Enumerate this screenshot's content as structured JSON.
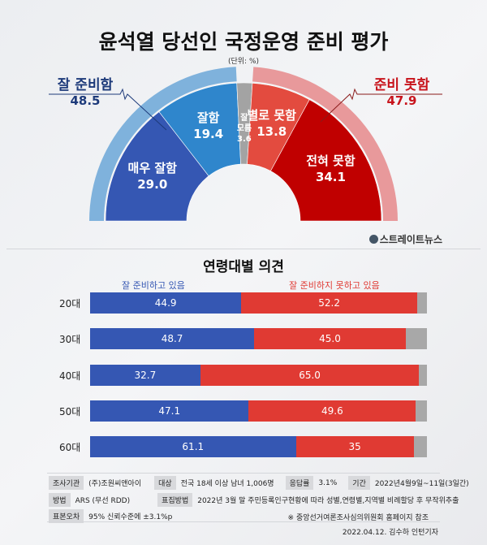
{
  "chart_data": [
    {
      "type": "pie",
      "variant": "semi-donut",
      "title": "윤석열 당선인 국정운영 준비 평가",
      "unit_note": "(단위: %)",
      "slices": [
        {
          "label": "매우 잘함",
          "value": 29.0,
          "color": "#3557b3"
        },
        {
          "label": "잘함",
          "value": 19.4,
          "color": "#2f86cc"
        },
        {
          "label": "잘 모름",
          "value": 3.6,
          "color": "#a3a3a3"
        },
        {
          "label": "별로 못함",
          "value": 13.8,
          "color": "#e34b3f"
        },
        {
          "label": "전혀 못함",
          "value": 34.1,
          "color": "#c00000"
        }
      ],
      "groups": [
        {
          "label": "잘 준비함",
          "value": "48.5",
          "color": "#7fb2dc",
          "text_color": "#1d3a7a"
        },
        {
          "label": "준비 못함",
          "value": "47.9",
          "color": "#e8999b",
          "text_color": "#c8141c"
        }
      ]
    },
    {
      "type": "bar",
      "orientation": "horizontal",
      "stacked": true,
      "title": "연령대별 의견",
      "categories": [
        "20대",
        "30대",
        "40대",
        "50대",
        "60대"
      ],
      "series": [
        {
          "name": "잘 준비하고 있음",
          "values": [
            "44.9",
            "48.7",
            "32.7",
            "47.1",
            "61.1"
          ],
          "color": "#3557b3"
        },
        {
          "name": "잘 준비하지 못하고 있음",
          "values": [
            "52.2",
            "45.0",
            "65.0",
            "49.6",
            "35"
          ],
          "color": "#e03a33"
        }
      ],
      "remainder_color": "#a8a8a8",
      "xlim": [
        0,
        100
      ]
    }
  ],
  "logo": "스트레이트뉴스",
  "info": {
    "org_label": "조사기관",
    "org": "(주)조원씨앤아이",
    "target_label": "대상",
    "target": "전국 18세 이상 남녀 1,006명",
    "rate_label": "응답률",
    "rate": "3.1%",
    "period_label": "기간",
    "period": "2022년4월9일~11일(3일간)",
    "method_label": "방법",
    "method": "ARS (무선 RDD)",
    "sampling_label": "표집방법",
    "sampling": "2022년 3월 말 주민등록인구현황에 따라 성별,연령별,지역별 비례할당 후 무작위추출",
    "error_label": "표본오차",
    "error": "95% 신뢰수준에 ±3.1%p",
    "note": "※ 중앙선거여론조사심의위원회 홈페이지 참조",
    "byline": "2022.04.12. 김수하 인턴기자"
  }
}
